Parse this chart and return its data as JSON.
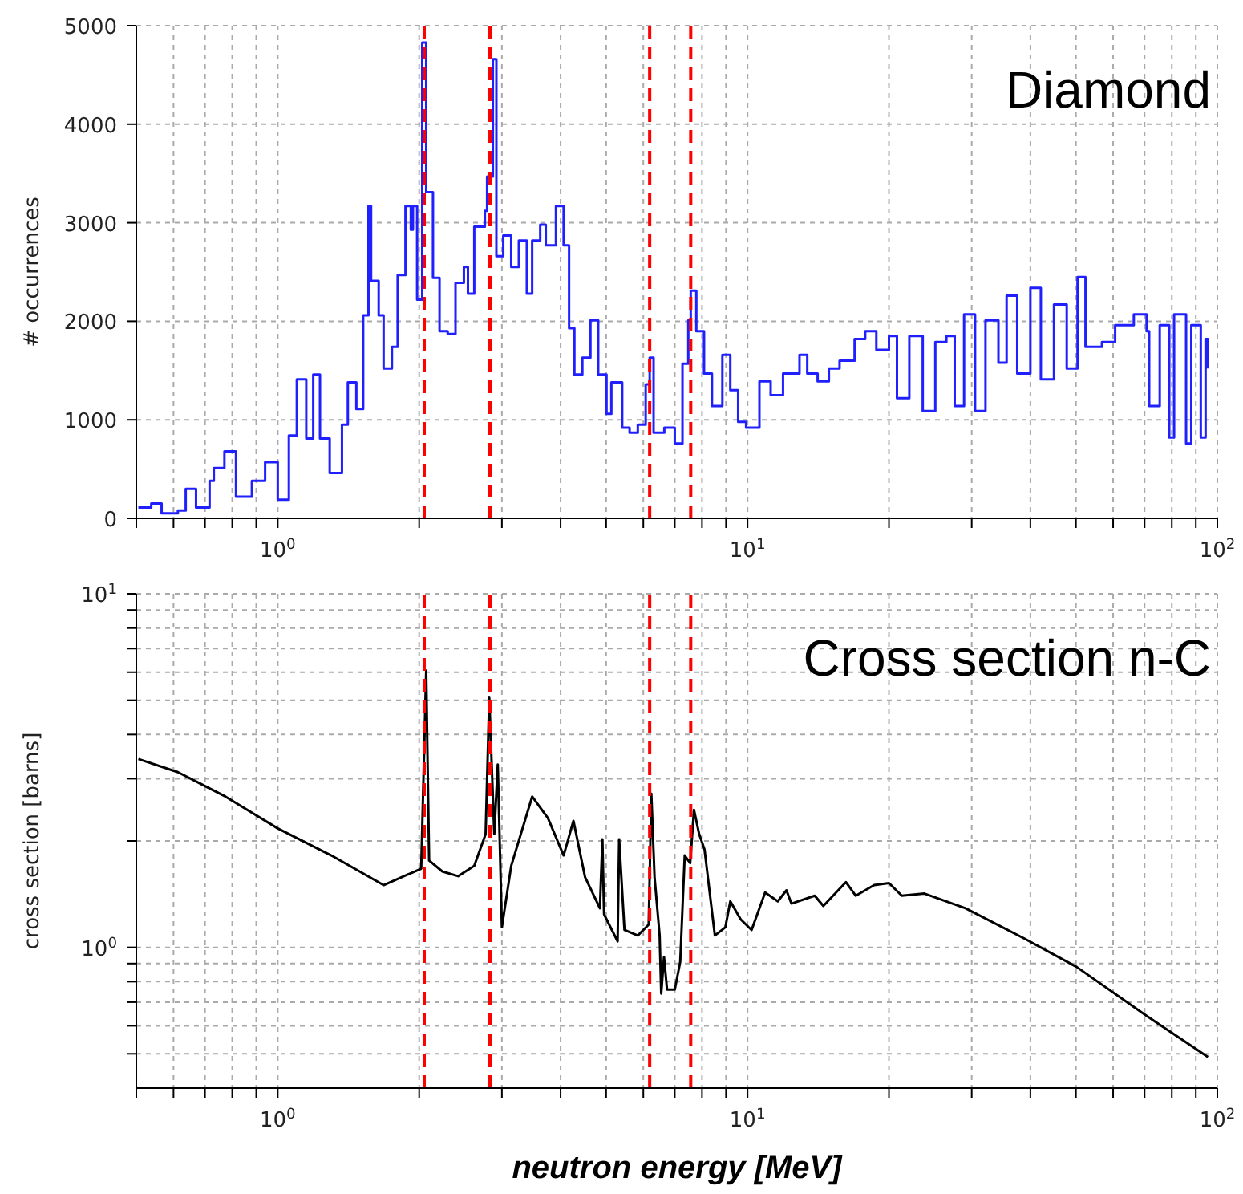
{
  "chart_data": [
    {
      "type": "step",
      "title": "Diamond",
      "ylabel": "# occurrences",
      "log": "x",
      "grid": true,
      "marker": "none",
      "line_style": "solid",
      "xlim": [
        0.5,
        100
      ],
      "ylim": [
        0,
        5000
      ],
      "xticks": [
        {
          "value": 0.5,
          "label": null
        },
        {
          "value": 0.6,
          "label": null
        },
        {
          "value": 0.7,
          "label": null
        },
        {
          "value": 0.8,
          "label": null
        },
        {
          "value": 0.9,
          "label": null
        },
        {
          "value": 1,
          "label": "10$^{0}$"
        },
        {
          "value": 2,
          "label": null
        },
        {
          "value": 3,
          "label": null
        },
        {
          "value": 4,
          "label": null
        },
        {
          "value": 5,
          "label": null
        },
        {
          "value": 6,
          "label": null
        },
        {
          "value": 7,
          "label": null
        },
        {
          "value": 8,
          "label": null
        },
        {
          "value": 9,
          "label": null
        },
        {
          "value": 10,
          "label": "10$^{1}$"
        },
        {
          "value": 20,
          "label": null
        },
        {
          "value": 30,
          "label": null
        },
        {
          "value": 40,
          "label": null
        },
        {
          "value": 50,
          "label": null
        },
        {
          "value": 60,
          "label": null
        },
        {
          "value": 70,
          "label": null
        },
        {
          "value": 80,
          "label": null
        },
        {
          "value": 90,
          "label": null
        },
        {
          "value": 100,
          "label": "10$^{2}$"
        }
      ],
      "yticks": [
        0,
        1000,
        2000,
        3000,
        4000,
        5000
      ],
      "ref_lines": [
        {
          "axis": "x",
          "value": 2.05,
          "color": "#ff0000",
          "line_style": "dashed"
        },
        {
          "axis": "x",
          "value": 2.83,
          "color": "#ff0000",
          "line_style": "dashed"
        },
        {
          "axis": "x",
          "value": 6.19,
          "color": "#ff0000",
          "line_style": "dashed"
        },
        {
          "axis": "x",
          "value": 7.57,
          "color": "#ff0000",
          "line_style": "dashed"
        }
      ],
      "series": [
        {
          "color": "#2020ff",
          "x": [
            0.505,
            0.538,
            0.566,
            0.613,
            0.637,
            0.67,
            0.716,
            0.731,
            0.77,
            0.815,
            0.881,
            0.94,
            1.0,
            1.056,
            1.098,
            1.15,
            1.19,
            1.23,
            1.29,
            1.37,
            1.41,
            1.47,
            1.52,
            1.56,
            1.58,
            1.64,
            1.68,
            1.75,
            1.8,
            1.87,
            1.92,
            1.94,
            1.98,
            2.03,
            2.07,
            2.14,
            2.21,
            2.3,
            2.39,
            2.49,
            2.54,
            2.62,
            2.76,
            2.79,
            2.87,
            2.92,
            3.02,
            3.14,
            3.26,
            3.39,
            3.48,
            3.62,
            3.72,
            3.91,
            4.06,
            4.17,
            4.28,
            4.45,
            4.63,
            4.81,
            5.01,
            5.13,
            5.41,
            5.61,
            5.84,
            6.07,
            6.19,
            6.31,
            6.65,
            7.0,
            7.27,
            7.48,
            7.57,
            7.78,
            8.08,
            8.4,
            8.84,
            9.19,
            9.55,
            9.93,
            10.6,
            11.2,
            11.9,
            12.9,
            13.4,
            14.1,
            14.9,
            15.7,
            16.9,
            17.8,
            18.8,
            20.0,
            20.8,
            22.1,
            23.6,
            25.1,
            26.5,
            27.6,
            28.9,
            30.5,
            32.1,
            34.2,
            35.6,
            37.5,
            40.0,
            42.1,
            44.9,
            47.8,
            50.4,
            52.4,
            56.8,
            60.6,
            66.4,
            70.7,
            71.6,
            75.4,
            79.0,
            80.9,
            85.8,
            88.0,
            92.2,
            94.4,
            95.5
          ],
          "values": [
            110,
            150,
            50,
            80,
            300,
            110,
            380,
            510,
            680,
            220,
            380,
            570,
            190,
            840,
            1410,
            810,
            1460,
            810,
            460,
            950,
            1380,
            1110,
            2060,
            3170,
            2410,
            2060,
            1520,
            1740,
            2470,
            3170,
            2930,
            3170,
            2220,
            4830,
            3310,
            2440,
            1900,
            1870,
            2390,
            2550,
            2280,
            2960,
            3120,
            3470,
            4660,
            2660,
            2870,
            2550,
            2820,
            2280,
            2820,
            2980,
            2770,
            3170,
            2770,
            1930,
            1460,
            1630,
            2010,
            1460,
            1060,
            1380,
            920,
            870,
            950,
            1360,
            1630,
            870,
            920,
            760,
            1570,
            2010,
            2310,
            1900,
            1470,
            1140,
            1660,
            1300,
            980,
            920,
            1390,
            1250,
            1470,
            1660,
            1470,
            1390,
            1520,
            1600,
            1820,
            1900,
            1710,
            1850,
            1220,
            1850,
            1090,
            1790,
            1850,
            1140,
            2070,
            1090,
            2010,
            1580,
            2260,
            1470,
            2340,
            1410,
            2170,
            1520,
            2450,
            1740,
            1790,
            1960,
            2070,
            1900,
            1140,
            1960,
            820,
            2070,
            760,
            1960,
            820,
            1820,
            1520
          ]
        }
      ]
    },
    {
      "type": "line",
      "title": "Cross section n-C",
      "xlabel": "neutron energy [MeV]",
      "ylabel": "cross section [barns]",
      "log": "xy",
      "grid": true,
      "marker": "none",
      "line_style": "solid",
      "xlim": [
        0.5,
        100
      ],
      "ylim": [
        0.4,
        10
      ],
      "xticks": [
        {
          "value": 0.5,
          "label": null
        },
        {
          "value": 0.6,
          "label": null
        },
        {
          "value": 0.7,
          "label": null
        },
        {
          "value": 0.8,
          "label": null
        },
        {
          "value": 0.9,
          "label": null
        },
        {
          "value": 1,
          "label": "10$^{0}$"
        },
        {
          "value": 2,
          "label": null
        },
        {
          "value": 3,
          "label": null
        },
        {
          "value": 4,
          "label": null
        },
        {
          "value": 5,
          "label": null
        },
        {
          "value": 6,
          "label": null
        },
        {
          "value": 7,
          "label": null
        },
        {
          "value": 8,
          "label": null
        },
        {
          "value": 9,
          "label": null
        },
        {
          "value": 10,
          "label": "10$^{1}$"
        },
        {
          "value": 20,
          "label": null
        },
        {
          "value": 30,
          "label": null
        },
        {
          "value": 40,
          "label": null
        },
        {
          "value": 50,
          "label": null
        },
        {
          "value": 60,
          "label": null
        },
        {
          "value": 70,
          "label": null
        },
        {
          "value": 80,
          "label": null
        },
        {
          "value": 90,
          "label": null
        },
        {
          "value": 100,
          "label": "10$^{2}$"
        }
      ],
      "yticks": [
        {
          "value": 0.5,
          "label": null
        },
        {
          "value": 0.6,
          "label": null
        },
        {
          "value": 0.7,
          "label": null
        },
        {
          "value": 0.8,
          "label": null
        },
        {
          "value": 0.9,
          "label": null
        },
        {
          "value": 1,
          "label": "10$^{0}$"
        },
        {
          "value": 2,
          "label": null
        },
        {
          "value": 3,
          "label": null
        },
        {
          "value": 4,
          "label": null
        },
        {
          "value": 5,
          "label": null
        },
        {
          "value": 6,
          "label": null
        },
        {
          "value": 7,
          "label": null
        },
        {
          "value": 8,
          "label": null
        },
        {
          "value": 9,
          "label": null
        },
        {
          "value": 10,
          "label": "10$^{1}$"
        }
      ],
      "ref_lines": [
        {
          "axis": "x",
          "value": 2.05,
          "color": "#ff0000",
          "line_style": "dashed"
        },
        {
          "axis": "x",
          "value": 2.83,
          "color": "#ff0000",
          "line_style": "dashed"
        },
        {
          "axis": "x",
          "value": 6.19,
          "color": "#ff0000",
          "line_style": "dashed"
        },
        {
          "axis": "x",
          "value": 7.57,
          "color": "#ff0000",
          "line_style": "dashed"
        }
      ],
      "series": [
        {
          "color": "#000000",
          "x": [
            0.505,
            0.613,
            0.774,
            1.0,
            1.3,
            1.68,
            2.02,
            2.07,
            2.1,
            2.24,
            2.42,
            2.62,
            2.77,
            2.82,
            2.89,
            2.94,
            3.0,
            3.14,
            3.48,
            3.76,
            4.06,
            4.26,
            4.51,
            4.85,
            4.91,
            4.95,
            5.29,
            5.33,
            5.47,
            5.84,
            6.16,
            6.24,
            6.34,
            6.5,
            6.55,
            6.64,
            6.74,
            7.0,
            7.19,
            7.35,
            7.55,
            7.69,
            7.89,
            8.1,
            8.52,
            8.97,
            9.19,
            9.67,
            10.2,
            10.9,
            11.6,
            12.1,
            12.4,
            13.9,
            14.5,
            16.2,
            17.0,
            18.6,
            20.0,
            21.3,
            23.8,
            29.1,
            38.8,
            50.2,
            70.7,
            95.5
          ],
          "values": [
            3.41,
            3.13,
            2.67,
            2.17,
            1.82,
            1.5,
            1.67,
            6.06,
            1.76,
            1.64,
            1.59,
            1.7,
            2.09,
            5.08,
            2.09,
            3.29,
            1.14,
            1.7,
            2.67,
            2.32,
            1.82,
            2.28,
            1.58,
            1.29,
            2.02,
            1.24,
            1.04,
            2.02,
            1.12,
            1.08,
            1.16,
            2.72,
            1.58,
            1.08,
            0.74,
            0.94,
            0.76,
            0.76,
            0.91,
            1.82,
            1.73,
            2.45,
            2.09,
            1.89,
            1.08,
            1.14,
            1.35,
            1.2,
            1.12,
            1.43,
            1.35,
            1.45,
            1.33,
            1.4,
            1.31,
            1.53,
            1.4,
            1.5,
            1.52,
            1.4,
            1.42,
            1.29,
            1.06,
            0.88,
            0.64,
            0.49
          ]
        }
      ]
    }
  ]
}
